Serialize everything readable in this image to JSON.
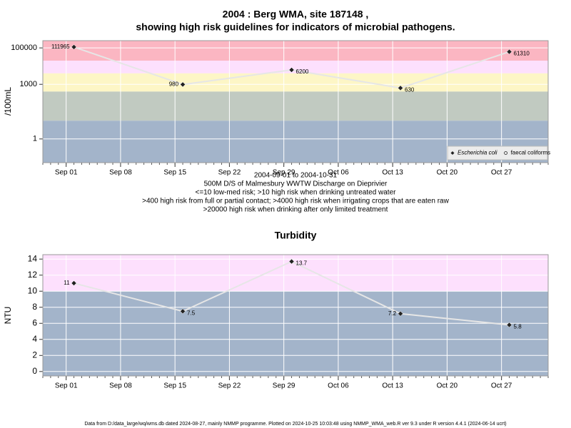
{
  "chart_data": [
    {
      "type": "scatter-line",
      "title": "2004 : Berg WMA, site 187148 ,",
      "subtitle": "showing high risk guidelines for indicators of microbial pathogens.",
      "ylabel": "/100mL",
      "log_scale": true,
      "x": [
        "2004-09-02",
        "2004-09-16",
        "2004-09-30",
        "2004-10-14",
        "2004-10-28"
      ],
      "series": [
        {
          "name": "Escherichia coli",
          "color": "#222222",
          "values": [
            111965,
            980,
            6200,
            630,
            61310
          ]
        },
        {
          "name": "faecal coliforms",
          "color": "#222222",
          "values": [
            null,
            null,
            null,
            null,
            null
          ]
        }
      ],
      "xlim": [
        "2004-08-29",
        "2004-11-02"
      ],
      "xticks": [
        {
          "value": "2004-09-01",
          "label": "Sep 01"
        },
        {
          "value": "2004-09-08",
          "label": "Sep 08"
        },
        {
          "value": "2004-09-15",
          "label": "Sep 15"
        },
        {
          "value": "2004-09-22",
          "label": "Sep 22"
        },
        {
          "value": "2004-09-29",
          "label": "Sep 29"
        },
        {
          "value": "2004-10-06",
          "label": "Oct 06"
        },
        {
          "value": "2004-10-13",
          "label": "Oct 13"
        },
        {
          "value": "2004-10-20",
          "label": "Oct 20"
        },
        {
          "value": "2004-10-27",
          "label": "Oct 27"
        }
      ],
      "ylim": [
        0.05,
        250000
      ],
      "yticks": [
        1,
        1000,
        100000
      ],
      "bands": [
        {
          "from": 20000,
          "to": 250000,
          "color": "#fbb6c2"
        },
        {
          "from": 4000,
          "to": 20000,
          "color": "#fde0fd"
        },
        {
          "from": 400,
          "to": 4000,
          "color": "#fdf6c6"
        },
        {
          "from": 10,
          "to": 400,
          "color": "#c1cac1"
        },
        {
          "from": 0.05,
          "to": 10,
          "color": "#a3b4ca"
        }
      ],
      "grid": true,
      "legend": "bottom-right",
      "notes": [
        "2004-09-01 to 2004-10-31",
        "500M D/S of Malmesbury WWTW Discharge on Dieprivier",
        "<=10 low-med risk; >10 high risk when drinking untreated water",
        ">400 high risk from full or partial contact; >4000 high risk when irrigating crops that are eaten raw",
        ">20000 high risk when drinking after only limited treatment"
      ]
    },
    {
      "type": "scatter-line",
      "title": "Turbidity",
      "ylabel": "NTU",
      "log_scale": false,
      "x": [
        "2004-09-02",
        "2004-09-16",
        "2004-09-30",
        "2004-10-14",
        "2004-10-28"
      ],
      "series": [
        {
          "name": "Turbidity",
          "color": "#222222",
          "values": [
            11,
            7.5,
            13.7,
            7.2,
            5.8
          ]
        }
      ],
      "xlim": [
        "2004-08-29",
        "2004-11-02"
      ],
      "xticks": [
        {
          "value": "2004-09-01",
          "label": "Sep 01"
        },
        {
          "value": "2004-09-08",
          "label": "Sep 08"
        },
        {
          "value": "2004-09-15",
          "label": "Sep 15"
        },
        {
          "value": "2004-09-22",
          "label": "Sep 22"
        },
        {
          "value": "2004-09-29",
          "label": "Sep 29"
        },
        {
          "value": "2004-10-06",
          "label": "Oct 06"
        },
        {
          "value": "2004-10-13",
          "label": "Oct 13"
        },
        {
          "value": "2004-10-20",
          "label": "Oct 20"
        },
        {
          "value": "2004-10-27",
          "label": "Oct 27"
        }
      ],
      "ylim": [
        -0.55,
        14.55
      ],
      "yticks": [
        0,
        2,
        4,
        6,
        8,
        10,
        12,
        14
      ],
      "bands": [
        {
          "from": 10,
          "to": 14.55,
          "color": "#fde0fd"
        },
        {
          "from": -0.55,
          "to": 10,
          "color": "#a3b4ca"
        }
      ],
      "grid": true
    }
  ],
  "footer": "Data from D:/data_large/wq/wms.db dated 2024-08-27, mainly NMMP programme. Plotted on 2024-10-25 10:03:48 using NMMP_WMA_web.R ver 9.3 under R version 4.4.1 (2024-06-14 ucrt)"
}
